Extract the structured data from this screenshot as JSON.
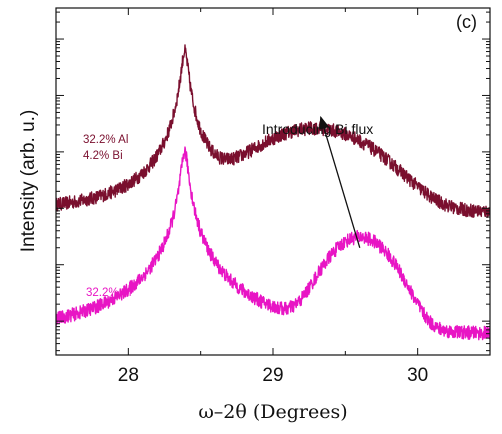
{
  "chart_data": {
    "type": "line",
    "panel_label": "(c)",
    "xlabel": "ω–2θ (Degrees)",
    "ylabel": "Intensity (arb. u.)",
    "xlim": [
      27.5,
      30.5
    ],
    "x_ticks": [
      28,
      29,
      30
    ],
    "y_scale": "log",
    "y_tick_labels": "none",
    "grid": false,
    "annotation": {
      "text": "Introducing Bi flux",
      "arrow_from": [
        29.6,
        0.5
      ],
      "arrow_to": [
        29.33,
        2.6
      ]
    },
    "series": [
      {
        "label_lines": [
          "32.2% Al",
          "4.2% Bi"
        ],
        "color": "#7a0f2e",
        "offset_decades": 2,
        "noisy": true,
        "baseline": 0.08,
        "peaks": [
          {
            "x": 28.39,
            "amplitude": 60,
            "width": 0.022,
            "shape": "lorentzian"
          },
          {
            "x": 29.29,
            "amplitude": 2.5,
            "width": 0.3,
            "shape": "gaussian"
          }
        ]
      },
      {
        "label_lines": [
          "32.2% Al"
        ],
        "color": "#e815c4",
        "offset_decades": 0,
        "noisy": true,
        "baseline": 0.05,
        "peaks": [
          {
            "x": 28.39,
            "amplitude": 100,
            "width": 0.022,
            "shape": "lorentzian"
          },
          {
            "x": 29.6,
            "amplitude": 3.0,
            "width": 0.16,
            "shape": "gaussian"
          }
        ]
      }
    ]
  }
}
